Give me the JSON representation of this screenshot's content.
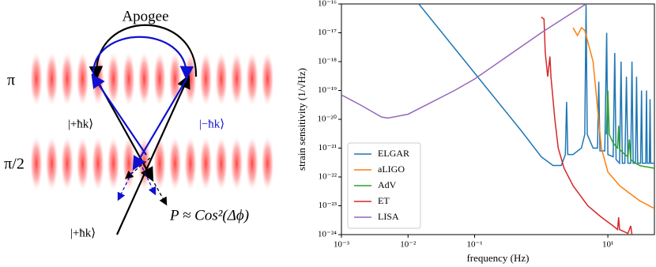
{
  "diagram": {
    "labels": {
      "apogee": "Apogee",
      "pi": "π",
      "pi_half": "π/2",
      "plus_upper": "|+ħk⟩",
      "minus": "|−ħk⟩",
      "plus_lower": "|+ħk⟩",
      "probability": "P ≈ Cos²(Δϕ)"
    }
  },
  "chart_data": {
    "type": "line",
    "xlabel": "frequency (Hz)",
    "ylabel": "strain sensitivity (1/√Hz)",
    "xscale": "log",
    "yscale": "log",
    "legend": "lower left",
    "xlim": [
      0.001,
      50
    ],
    "ylim": [
      1e-24,
      1e-16
    ],
    "xticks": [
      {
        "value": 0.001,
        "label": "10⁻³"
      },
      {
        "value": 0.01,
        "label": "10⁻²"
      },
      {
        "value": 0.1,
        "label": "10⁻¹"
      },
      {
        "value": 10,
        "label": "10¹"
      }
    ],
    "yticks": [
      {
        "value": 1e-24,
        "label": "10⁻²⁴"
      },
      {
        "value": 1e-23,
        "label": "10⁻²³"
      },
      {
        "value": 1e-22,
        "label": "10⁻²²"
      },
      {
        "value": 1e-21,
        "label": "10⁻²¹"
      },
      {
        "value": 1e-20,
        "label": "10⁻²⁰"
      },
      {
        "value": 1e-19,
        "label": "10⁻¹⁹"
      },
      {
        "value": 1e-18,
        "label": "10⁻¹⁸"
      },
      {
        "value": 1e-17,
        "label": "10⁻¹⁷"
      },
      {
        "value": 1e-16,
        "label": "10⁻¹⁶"
      }
    ],
    "series": [
      {
        "name": "ELGAR",
        "color": "#1f77b4",
        "x": [
          0.0145,
          0.1,
          0.5,
          1,
          1.5,
          2,
          2.3,
          2.4,
          2.5,
          3,
          4,
          4.5,
          4.7,
          4.9,
          6,
          7,
          7.3,
          7.6,
          9,
          9.6,
          10,
          12,
          12.7,
          13.3,
          15,
          15.8,
          16.5,
          18,
          19,
          20,
          22,
          23,
          24,
          26,
          27,
          28,
          31,
          32,
          33,
          37,
          38,
          39,
          42,
          43,
          44,
          50
        ],
        "values": [
          1e-16,
          4e-19,
          4e-21,
          5e-22,
          2.5e-22,
          2.5e-22,
          6e-22,
          4e-20,
          6e-22,
          6e-22,
          1e-21,
          3e-21,
          1e-16,
          3e-21,
          1e-21,
          1e-21,
          2e-19,
          8e-22,
          8e-22,
          1e-17,
          6e-22,
          5e-22,
          2e-18,
          4e-22,
          3e-22,
          1e-18,
          3e-22,
          3e-22,
          3e-19,
          3e-22,
          3e-22,
          1e-18,
          3e-22,
          3e-22,
          3e-19,
          3e-22,
          3e-22,
          1e-19,
          3e-22,
          3e-22,
          1e-19,
          3e-22,
          3e-22,
          5e-20,
          3e-22,
          3e-22
        ]
      },
      {
        "name": "aLIGO",
        "color": "#ff7f0e",
        "x": [
          3,
          3.5,
          4,
          4.5,
          6,
          8,
          10,
          15,
          20,
          30,
          50
        ],
        "values": [
          1.5e-17,
          8e-18,
          1.5e-17,
          1.2e-17,
          1e-18,
          1e-21,
          1.5e-22,
          5e-23,
          3e-23,
          1.5e-23,
          8e-24
        ]
      },
      {
        "name": "AdV",
        "color": "#2ca02c",
        "x": [
          9.5,
          10,
          10.5,
          12,
          14,
          14.5,
          15,
          18,
          20,
          21,
          22,
          26,
          30,
          35,
          40,
          50
        ],
        "values": [
          3e-21,
          1e-19,
          3e-21,
          1.5e-21,
          1e-21,
          6e-21,
          9e-22,
          6e-22,
          5e-22,
          2e-21,
          4e-22,
          3e-22,
          2.5e-22,
          2.3e-22,
          2.2e-22,
          2e-22
        ]
      },
      {
        "name": "ET",
        "color": "#d62728",
        "x": [
          1,
          1.1,
          1.15,
          1.25,
          1.35,
          1.4,
          1.6,
          1.8,
          2.2,
          3,
          5,
          8,
          12,
          14,
          14.5,
          15,
          20,
          22,
          23
        ],
        "values": [
          3.5e-17,
          3e-17,
          2e-18,
          3e-19,
          1.5e-18,
          3e-19,
          1e-20,
          1e-21,
          2e-22,
          5e-23,
          1e-23,
          4e-24,
          2e-24,
          1.5e-24,
          4e-24,
          1.5e-24,
          1.1e-24,
          2e-24,
          1e-24
        ]
      },
      {
        "name": "LISA",
        "color": "#9467bd",
        "x": [
          0.001,
          0.002,
          0.004,
          0.005,
          0.01,
          0.05,
          0.1,
          1,
          4.7
        ],
        "values": [
          7e-20,
          3e-20,
          1.2e-20,
          1.1e-20,
          1.5e-20,
          1e-19,
          2.5e-19,
          1e-17,
          1e-16
        ]
      }
    ]
  }
}
